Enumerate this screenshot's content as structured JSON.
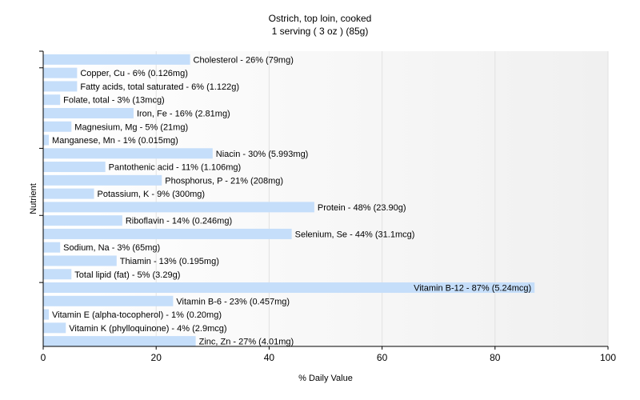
{
  "chart_data": {
    "type": "bar",
    "orientation": "horizontal",
    "title": "Ostrich, top loin, cooked",
    "subtitle": "1 serving ( 3 oz ) (85g)",
    "xlabel": "% Daily Value",
    "ylabel": "Nutrient",
    "xlim": [
      0,
      100
    ],
    "xticks": [
      "0",
      "20",
      "40",
      "60",
      "80",
      "100"
    ],
    "grid": true,
    "bar_color": "#c5defa",
    "categories": [
      "Cholesterol",
      "Copper, Cu",
      "Fatty acids, total saturated",
      "Folate, total",
      "Iron, Fe",
      "Magnesium, Mg",
      "Manganese, Mn",
      "Niacin",
      "Pantothenic acid",
      "Phosphorus, P",
      "Potassium, K",
      "Protein",
      "Riboflavin",
      "Selenium, Se",
      "Sodium, Na",
      "Thiamin",
      "Total lipid (fat)",
      "Vitamin B-12",
      "Vitamin B-6",
      "Vitamin E (alpha-tocopherol)",
      "Vitamin K (phylloquinone)",
      "Zinc, Zn"
    ],
    "values": [
      26,
      6,
      6,
      3,
      16,
      5,
      1,
      30,
      11,
      21,
      9,
      48,
      14,
      44,
      3,
      13,
      5,
      87,
      23,
      1,
      4,
      27
    ],
    "labels": [
      "Cholesterol - 26% (79mg)",
      "Copper, Cu - 6% (0.126mg)",
      "Fatty acids, total saturated - 6% (1.122g)",
      "Folate, total - 3% (13mcg)",
      "Iron, Fe - 16% (2.81mg)",
      "Magnesium, Mg - 5% (21mg)",
      "Manganese, Mn - 1% (0.015mg)",
      "Niacin - 30% (5.993mg)",
      "Pantothenic acid - 11% (1.106mg)",
      "Phosphorus, P - 21% (208mg)",
      "Potassium, K - 9% (300mg)",
      "Protein - 48% (23.90g)",
      "Riboflavin - 14% (0.246mg)",
      "Selenium, Se - 44% (31.1mcg)",
      "Sodium, Na - 3% (65mg)",
      "Thiamin - 13% (0.195mg)",
      "Total lipid (fat) - 5% (3.29g)",
      "Vitamin B-12 - 87% (5.24mcg)",
      "Vitamin B-6 - 23% (0.457mg)",
      "Vitamin E (alpha-tocopherol) - 1% (0.20mg)",
      "Vitamin K (phylloquinone) - 4% (2.9mcg)",
      "Zinc, Zn - 27% (4.01mg)"
    ]
  }
}
